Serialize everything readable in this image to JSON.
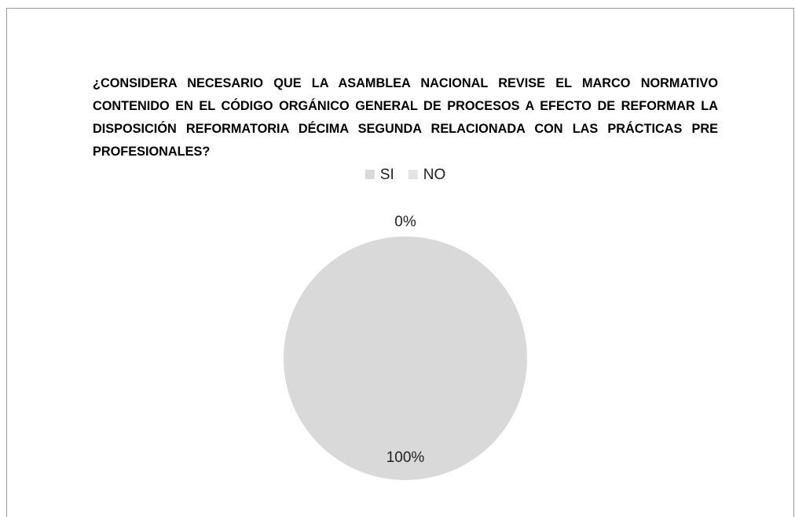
{
  "chart_data": {
    "type": "pie",
    "title": "¿CONSIDERA NECESARIO QUE LA ASAMBLEA NACIONAL REVISE EL MARCO NORMATIVO CONTENIDO EN EL CÓDIGO ORGÁNICO GENERAL DE PROCESOS A EFECTO DE REFORMAR LA DISPOSICIÓN REFORMATORIA DÉCIMA SEGUNDA RELACIONADA CON LAS PRÁCTICAS PRE PROFESIONALES?",
    "categories": [
      "SI",
      "NO"
    ],
    "values": [
      100,
      0
    ],
    "value_labels": [
      "100%",
      "0%"
    ],
    "colors": [
      "#d9d9d9",
      "#e4e4e4"
    ],
    "legend": "top"
  }
}
